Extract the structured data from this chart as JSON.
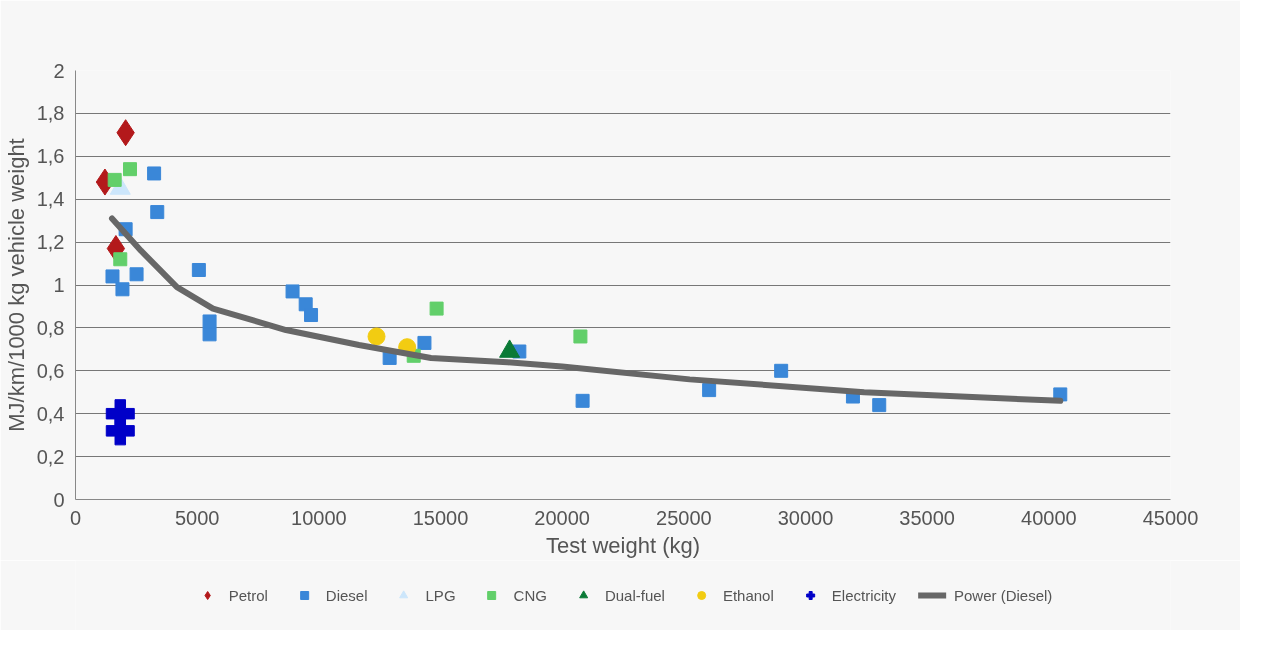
{
  "chart_data": {
    "type": "scatter",
    "xlabel": "Test weight (kg)",
    "ylabel": "MJ/km/1000 kg vehicle weight",
    "xlim": [
      0,
      45000
    ],
    "xticks": [
      0,
      5000,
      10000,
      15000,
      20000,
      25000,
      30000,
      35000,
      40000,
      45000
    ],
    "ylim": [
      0,
      2
    ],
    "yticks": [
      {
        "value": 0,
        "label": "0"
      },
      {
        "value": 0.2,
        "label": "0,2"
      },
      {
        "value": 0.4,
        "label": "0,4"
      },
      {
        "value": 0.6,
        "label": "0,6"
      },
      {
        "value": 0.8,
        "label": "0,8"
      },
      {
        "value": 1,
        "label": "1"
      },
      {
        "value": 1.2,
        "label": "1,2"
      },
      {
        "value": 1.4,
        "label": "1,4"
      },
      {
        "value": 1.6,
        "label": "1,6"
      },
      {
        "value": 1.8,
        "label": "1,8"
      },
      {
        "value": 2,
        "label": "2"
      }
    ],
    "grid": "y",
    "legend": "bottom",
    "series": [
      {
        "name": "Petrol",
        "color": "#b3191b",
        "marker": "diamond",
        "x": [
          2060,
          1210,
          1660
        ],
        "values": [
          1.71,
          1.48,
          1.17
        ]
      },
      {
        "name": "Diesel",
        "color": "#3a87d8",
        "marker": "square",
        "x": [
          3230,
          3360,
          2060,
          1520,
          1930,
          2510,
          5070,
          5510,
          5510,
          8920,
          9460,
          9680,
          12910,
          14340,
          18240,
          20840,
          26040,
          29000,
          31950,
          33030,
          40470
        ],
        "values": [
          1.52,
          1.34,
          1.26,
          1.04,
          0.98,
          1.05,
          1.07,
          0.83,
          0.77,
          0.97,
          0.91,
          0.86,
          0.66,
          0.73,
          0.69,
          0.46,
          0.51,
          0.6,
          0.48,
          0.44,
          0.49
        ]
      },
      {
        "name": "LPG",
        "color": "#cce6fb",
        "marker": "triangle",
        "x": [
          1840
        ],
        "values": [
          1.45
        ]
      },
      {
        "name": "CNG",
        "color": "#62cf6a",
        "marker": "square",
        "x": [
          1610,
          2240,
          1840,
          14840,
          13900,
          20750
        ],
        "values": [
          1.49,
          1.54,
          1.12,
          0.89,
          0.67,
          0.76
        ]
      },
      {
        "name": "Dual-fuel",
        "color": "#0a7a36",
        "marker": "triangle",
        "x": [
          17840
        ],
        "values": [
          0.69
        ]
      },
      {
        "name": "Ethanol",
        "color": "#f2cc12",
        "marker": "circle",
        "x": [
          12370,
          13630
        ],
        "values": [
          0.76,
          0.71
        ]
      },
      {
        "name": "Electricity",
        "color": "#0000c8",
        "marker": "cross",
        "x": [
          1840,
          1840
        ],
        "values": [
          0.4,
          0.32
        ]
      },
      {
        "name": "Power (Diesel)",
        "type": "line",
        "color": "#676767",
        "marker": "none",
        "line_style": "solid",
        "x": [
          1500,
          2690,
          4170,
          5650,
          8650,
          11650,
          14610,
          17750,
          20000,
          25240,
          32410,
          40470
        ],
        "values": [
          1.31,
          1.16,
          0.99,
          0.89,
          0.79,
          0.72,
          0.66,
          0.64,
          0.62,
          0.56,
          0.5,
          0.46
        ]
      }
    ]
  }
}
